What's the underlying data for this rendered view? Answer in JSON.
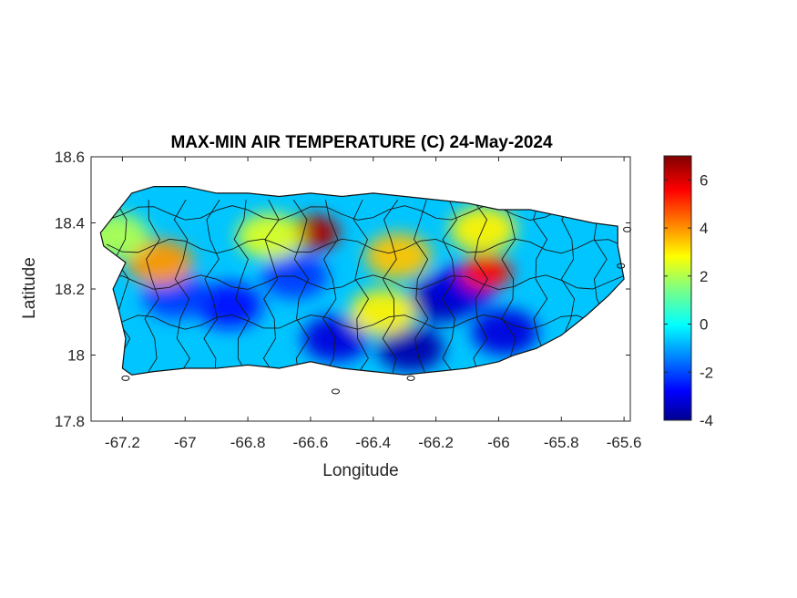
{
  "chart_data": {
    "type": "heatmap",
    "title": "MAX-MIN AIR TEMPERATURE (C) 24-May-2024",
    "xlabel": "Longitude",
    "ylabel": "Latitude",
    "xlim": [
      -67.3,
      -65.58
    ],
    "ylim": [
      17.8,
      18.6
    ],
    "xticks": [
      -67.2,
      -67,
      -66.8,
      -66.6,
      -66.4,
      -66.2,
      -66,
      -65.8,
      -65.6
    ],
    "xtick_labels": [
      "-67.2",
      "-67",
      "-66.8",
      "-66.6",
      "-66.4",
      "-66.2",
      "-66",
      "-65.8",
      "-65.6"
    ],
    "yticks": [
      17.8,
      18,
      18.2,
      18.4,
      18.6
    ],
    "ytick_labels": [
      "17.8",
      "18",
      "18.2",
      "18.4",
      "18.6"
    ],
    "colorbar": {
      "colormap": "jet",
      "range": [
        -4,
        7
      ],
      "ticks": [
        -4,
        -2,
        0,
        2,
        4,
        6
      ],
      "tick_labels": [
        "-4",
        "-2",
        "0",
        "2",
        "4",
        "6"
      ]
    },
    "background_value": -0.5,
    "hotspots": [
      {
        "lon": -66.59,
        "lat": 18.37,
        "value": 6.5
      },
      {
        "lon": -66.04,
        "lat": 18.25,
        "value": 5.5
      },
      {
        "lon": -67.08,
        "lat": 18.28,
        "value": 4.0
      },
      {
        "lon": -66.32,
        "lat": 18.3,
        "value": 3.5
      },
      {
        "lon": -66.05,
        "lat": 18.38,
        "value": 3.0
      },
      {
        "lon": -66.37,
        "lat": 18.13,
        "value": 3.0
      },
      {
        "lon": -66.73,
        "lat": 18.36,
        "value": 2.5
      },
      {
        "lon": -67.22,
        "lat": 18.36,
        "value": 2.0
      }
    ],
    "coldspots": [
      {
        "lon": -66.18,
        "lat": 18.17,
        "value": -3.5
      },
      {
        "lon": -66.28,
        "lat": 18.02,
        "value": -3.5
      },
      {
        "lon": -65.98,
        "lat": 18.07,
        "value": -3.0
      },
      {
        "lon": -66.52,
        "lat": 18.05,
        "value": -3.0
      },
      {
        "lon": -66.86,
        "lat": 18.15,
        "value": -2.5
      },
      {
        "lon": -67.03,
        "lat": 18.18,
        "value": -2.0
      },
      {
        "lon": -66.65,
        "lat": 18.24,
        "value": -2.0
      },
      {
        "lon": -66.12,
        "lat": 18.2,
        "value": -3.0
      }
    ],
    "grid": false,
    "colorbar_placement": "right"
  }
}
